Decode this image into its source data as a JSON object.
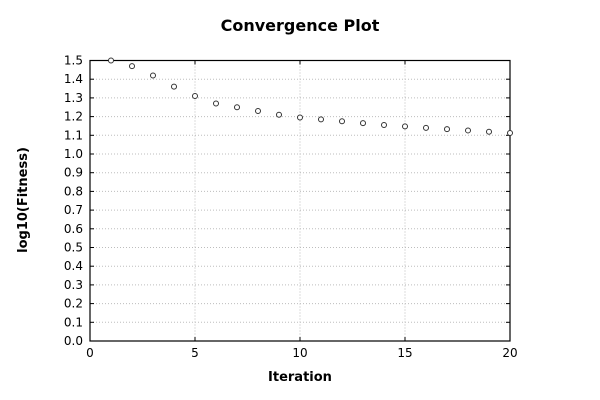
{
  "chart_data": {
    "type": "scatter",
    "title": "Convergence Plot",
    "xlabel": "Iteration",
    "ylabel": "log10(Fitness)",
    "x": [
      1,
      2,
      3,
      4,
      5,
      6,
      7,
      8,
      9,
      10,
      11,
      12,
      13,
      14,
      15,
      16,
      17,
      18,
      19,
      20
    ],
    "y": [
      1.5,
      1.47,
      1.42,
      1.36,
      1.31,
      1.27,
      1.25,
      1.23,
      1.21,
      1.195,
      1.185,
      1.175,
      1.165,
      1.155,
      1.148,
      1.14,
      1.133,
      1.126,
      1.119,
      1.112
    ],
    "xlim": [
      0,
      20
    ],
    "ylim": [
      0.0,
      1.5
    ],
    "xticks": [
      0,
      5,
      10,
      15,
      20
    ],
    "ytick_step": 0.1,
    "grid": true,
    "legend": "none",
    "marker": "open-circle",
    "colors": {
      "marker": "#333333",
      "grid": "#bdbdbd",
      "axis": "#000000",
      "background": "#ffffff",
      "text": "#000000"
    }
  }
}
